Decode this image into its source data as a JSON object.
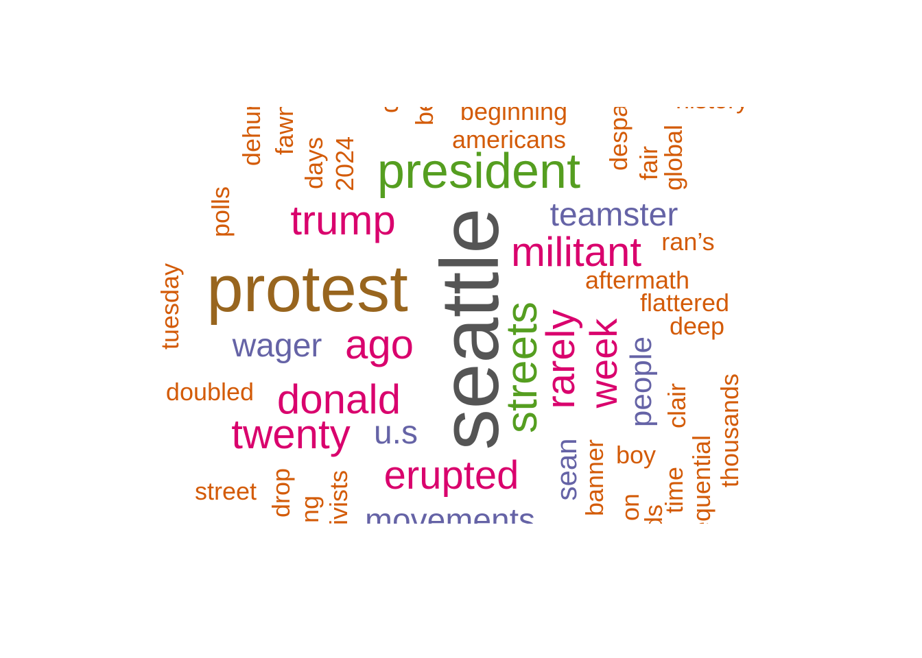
{
  "palette": {
    "grey": "#555555",
    "brown": "#98651E",
    "green": "#559E20",
    "magenta": "#D9026D",
    "purple": "#6563A6",
    "orange": "#D35B08"
  },
  "words": [
    {
      "text": "seattle",
      "color": "grey",
      "vertical": true
    },
    {
      "text": "protest",
      "color": "brown",
      "vertical": false
    },
    {
      "text": "president",
      "color": "green",
      "vertical": false
    },
    {
      "text": "streets",
      "color": "green",
      "vertical": true
    },
    {
      "text": "trump",
      "color": "magenta",
      "vertical": false
    },
    {
      "text": "militant",
      "color": "magenta",
      "vertical": false
    },
    {
      "text": "rarely",
      "color": "magenta",
      "vertical": true
    },
    {
      "text": "week",
      "color": "magenta",
      "vertical": true
    },
    {
      "text": "ago",
      "color": "magenta",
      "vertical": false
    },
    {
      "text": "donald",
      "color": "magenta",
      "vertical": false
    },
    {
      "text": "twenty",
      "color": "magenta",
      "vertical": false
    },
    {
      "text": "erupted",
      "color": "magenta",
      "vertical": false
    },
    {
      "text": "teamster",
      "color": "purple",
      "vertical": false
    },
    {
      "text": "wager",
      "color": "purple",
      "vertical": false
    },
    {
      "text": "u.s",
      "color": "purple",
      "vertical": false
    },
    {
      "text": "people",
      "color": "purple",
      "vertical": true
    },
    {
      "text": "sean",
      "color": "purple",
      "vertical": true
    },
    {
      "text": "movements",
      "color": "purple",
      "vertical": false
    },
    {
      "text": "beginning",
      "color": "orange",
      "vertical": false
    },
    {
      "text": "americans",
      "color": "orange",
      "vertical": false
    },
    {
      "text": "ran’s",
      "color": "orange",
      "vertical": false
    },
    {
      "text": "aftermath",
      "color": "orange",
      "vertical": false
    },
    {
      "text": "flattered",
      "color": "orange",
      "vertical": false
    },
    {
      "text": "deep",
      "color": "orange",
      "vertical": false
    },
    {
      "text": "doubled",
      "color": "orange",
      "vertical": false
    },
    {
      "text": "street",
      "color": "orange",
      "vertical": false
    },
    {
      "text": "boy",
      "color": "orange",
      "vertical": false
    },
    {
      "text": "history",
      "color": "orange",
      "vertical": false
    },
    {
      "text": "tuesday",
      "color": "orange",
      "vertical": true
    },
    {
      "text": "polls",
      "color": "orange",
      "vertical": true
    },
    {
      "text": "dehumanizing",
      "color": "orange",
      "vertical": true
    },
    {
      "text": "fawned",
      "color": "orange",
      "vertical": true
    },
    {
      "text": "days",
      "color": "orange",
      "vertical": true
    },
    {
      "text": "2024",
      "color": "orange",
      "vertical": true
    },
    {
      "text": "left",
      "color": "orange",
      "vertical": true
    },
    {
      "text": "dead",
      "color": "orange",
      "vertical": true
    },
    {
      "text": "been",
      "color": "orange",
      "vertical": true
    },
    {
      "text": "despair",
      "color": "orange",
      "vertical": true
    },
    {
      "text": "fair",
      "color": "orange",
      "vertical": true
    },
    {
      "text": "global",
      "color": "orange",
      "vertical": true
    },
    {
      "text": "clair",
      "color": "orange",
      "vertical": true
    },
    {
      "text": "inconsequential",
      "color": "orange",
      "vertical": true
    },
    {
      "text": "thousands",
      "color": "orange",
      "vertical": true
    },
    {
      "text": "time",
      "color": "orange",
      "vertical": true
    },
    {
      "text": "friends",
      "color": "orange",
      "vertical": true
    },
    {
      "text": "on",
      "color": "orange",
      "vertical": true
    },
    {
      "text": "banner",
      "color": "orange",
      "vertical": true
    },
    {
      "text": "drop",
      "color": "orange",
      "vertical": true
    },
    {
      "text": "wing",
      "color": "orange",
      "vertical": true
    },
    {
      "text": "activists",
      "color": "orange",
      "vertical": true
    }
  ]
}
